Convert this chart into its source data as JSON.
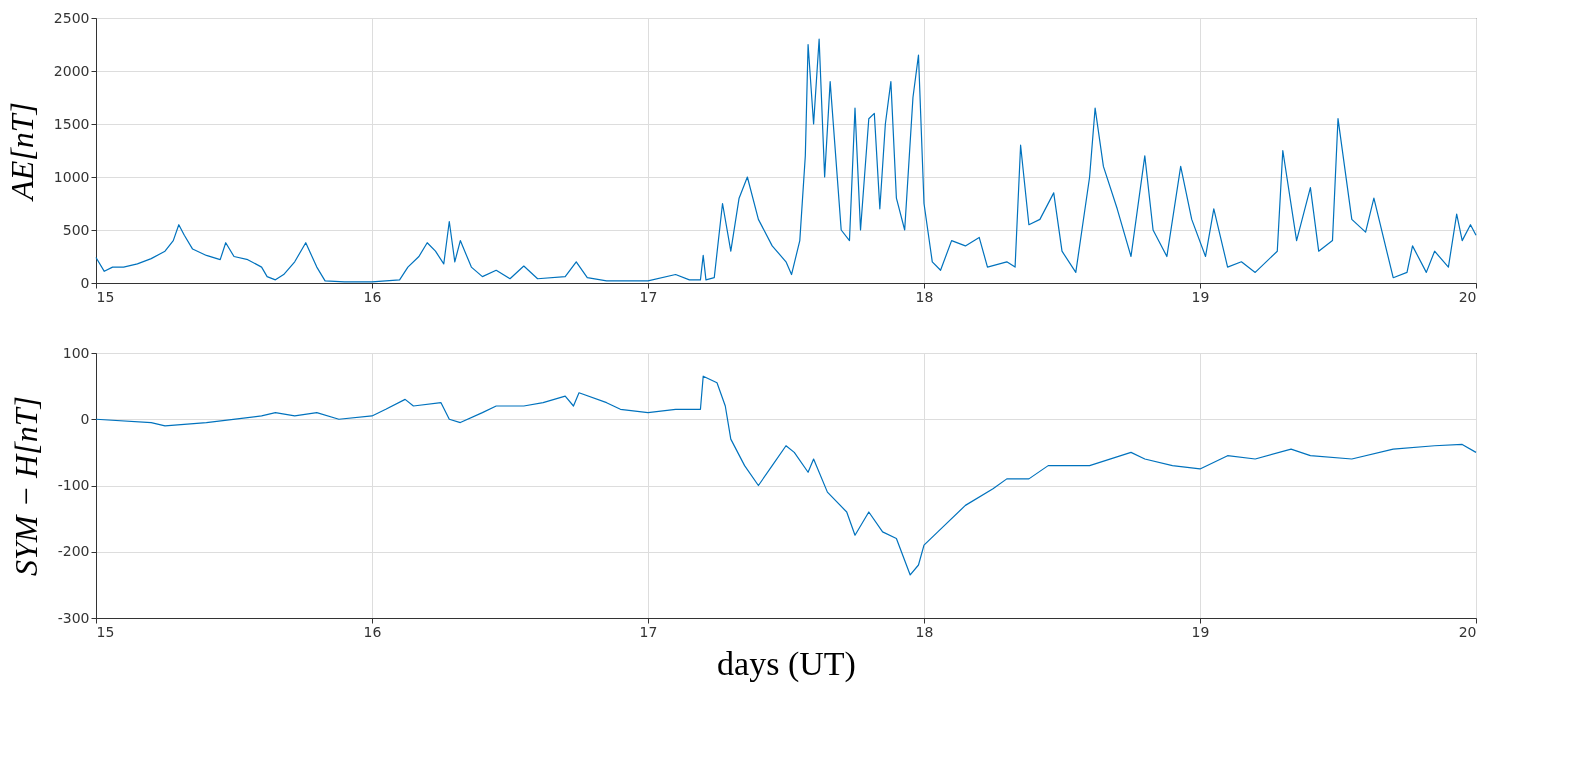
{
  "chart_data": [
    {
      "type": "line",
      "ylabel": "AE[nT]",
      "xlim": [
        15,
        20
      ],
      "xticks": [
        15,
        16,
        17,
        18,
        19,
        20
      ],
      "ylim": [
        0,
        2500
      ],
      "yticks": [
        0,
        500,
        1000,
        1500,
        2000,
        2500
      ],
      "grid": true,
      "x": [
        15.0,
        15.03,
        15.06,
        15.1,
        15.15,
        15.2,
        15.25,
        15.28,
        15.3,
        15.32,
        15.35,
        15.4,
        15.45,
        15.47,
        15.5,
        15.55,
        15.6,
        15.62,
        15.65,
        15.68,
        15.72,
        15.76,
        15.8,
        15.83,
        15.9,
        16.0,
        16.1,
        16.13,
        16.17,
        16.2,
        16.23,
        16.26,
        16.28,
        16.3,
        16.32,
        16.36,
        16.4,
        16.45,
        16.5,
        16.55,
        16.6,
        16.7,
        16.74,
        16.78,
        16.85,
        17.0,
        17.1,
        17.15,
        17.19,
        17.2,
        17.21,
        17.24,
        17.27,
        17.3,
        17.33,
        17.36,
        17.4,
        17.45,
        17.5,
        17.52,
        17.55,
        17.57,
        17.58,
        17.6,
        17.62,
        17.64,
        17.66,
        17.7,
        17.73,
        17.75,
        17.77,
        17.8,
        17.82,
        17.84,
        17.86,
        17.88,
        17.9,
        17.93,
        17.96,
        17.98,
        18.0,
        18.03,
        18.06,
        18.1,
        18.15,
        18.2,
        18.23,
        18.3,
        18.33,
        18.35,
        18.38,
        18.42,
        18.47,
        18.5,
        18.55,
        18.6,
        18.62,
        18.65,
        18.7,
        18.75,
        18.8,
        18.83,
        18.88,
        18.93,
        18.97,
        19.02,
        19.05,
        19.1,
        19.15,
        19.2,
        19.28,
        19.3,
        19.35,
        19.4,
        19.43,
        19.48,
        19.5,
        19.55,
        19.6,
        19.63,
        19.7,
        19.75,
        19.77,
        19.82,
        19.85,
        19.9,
        19.93,
        19.95,
        19.98,
        20.0
      ],
      "series": [
        {
          "color": "#0072bd",
          "values": [
            240,
            110,
            150,
            150,
            180,
            230,
            300,
            400,
            550,
            450,
            320,
            260,
            220,
            380,
            250,
            220,
            150,
            60,
            30,
            80,
            200,
            380,
            150,
            20,
            10,
            10,
            30,
            150,
            250,
            380,
            300,
            180,
            580,
            200,
            400,
            150,
            60,
            120,
            40,
            160,
            40,
            60,
            200,
            50,
            20,
            20,
            80,
            30,
            30,
            260,
            30,
            50,
            750,
            300,
            800,
            1000,
            600,
            350,
            200,
            80,
            400,
            1200,
            2250,
            1500,
            2300,
            1000,
            1900,
            500,
            400,
            1650,
            500,
            1550,
            1600,
            700,
            1500,
            1900,
            800,
            500,
            1750,
            2150,
            750,
            200,
            120,
            400,
            350,
            430,
            150,
            200,
            150,
            1300,
            550,
            600,
            850,
            300,
            100,
            1000,
            1650,
            1100,
            700,
            250,
            1200,
            500,
            250,
            1100,
            600,
            250,
            700,
            150,
            200,
            100,
            300,
            1250,
            400,
            900,
            300,
            400,
            1550,
            600,
            480,
            800,
            50,
            100,
            350,
            100,
            300,
            150,
            650,
            400,
            550,
            450
          ]
        }
      ]
    },
    {
      "type": "line",
      "ylabel": "SYM − H[nT]",
      "xlabel": "days (UT)",
      "xlim": [
        15,
        20
      ],
      "xticks": [
        15,
        16,
        17,
        18,
        19,
        20
      ],
      "ylim": [
        -300,
        100
      ],
      "yticks": [
        -300,
        -200,
        -100,
        0,
        100
      ],
      "grid": true,
      "x": [
        15.0,
        15.2,
        15.25,
        15.4,
        15.6,
        15.65,
        15.72,
        15.8,
        15.88,
        16.0,
        16.05,
        16.12,
        16.15,
        16.25,
        16.28,
        16.32,
        16.4,
        16.45,
        16.55,
        16.62,
        16.7,
        16.73,
        16.75,
        16.85,
        16.9,
        17.0,
        17.1,
        17.19,
        17.2,
        17.25,
        17.28,
        17.3,
        17.35,
        17.4,
        17.45,
        17.5,
        17.53,
        17.58,
        17.6,
        17.65,
        17.72,
        17.75,
        17.8,
        17.85,
        17.9,
        17.95,
        17.98,
        18.0,
        18.05,
        18.15,
        18.25,
        18.3,
        18.38,
        18.45,
        18.6,
        18.75,
        18.8,
        18.9,
        19.0,
        19.1,
        19.2,
        19.33,
        19.4,
        19.55,
        19.7,
        19.85,
        19.95,
        20.0
      ],
      "series": [
        {
          "color": "#0072bd",
          "values": [
            0,
            -5,
            -10,
            -5,
            5,
            10,
            5,
            10,
            0,
            5,
            15,
            30,
            20,
            25,
            0,
            -5,
            10,
            20,
            20,
            25,
            35,
            20,
            40,
            25,
            15,
            10,
            15,
            15,
            65,
            55,
            20,
            -30,
            -70,
            -100,
            -70,
            -40,
            -50,
            -80,
            -60,
            -110,
            -140,
            -175,
            -140,
            -170,
            -180,
            -235,
            -220,
            -190,
            -170,
            -130,
            -105,
            -90,
            -90,
            -70,
            -70,
            -50,
            -60,
            -70,
            -75,
            -55,
            -60,
            -45,
            -55,
            -60,
            -45,
            -40,
            -38,
            -50
          ]
        }
      ]
    }
  ]
}
